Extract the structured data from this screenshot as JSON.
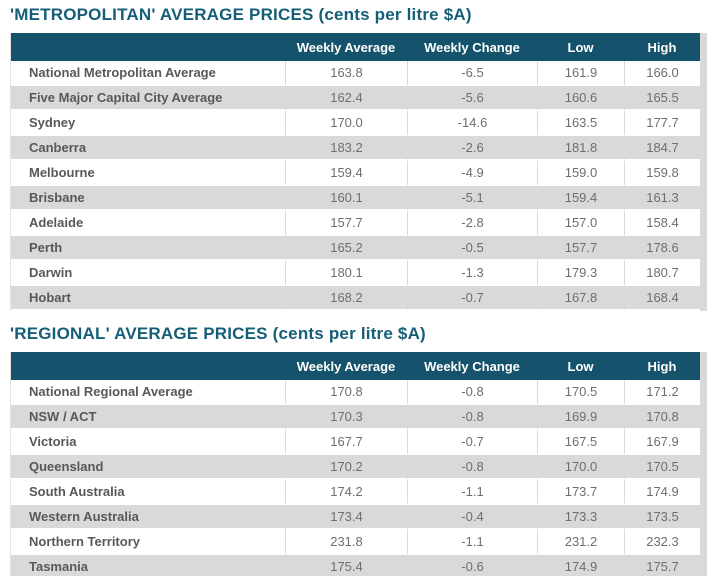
{
  "colors": {
    "header_bg": "#14536B",
    "header_text": "#FFFFFF",
    "title_color": "#155E77",
    "row_alt_bg": "#D9D9D9",
    "label_color": "#58585A",
    "value_color": "#6D6E70"
  },
  "chart_data": [
    {
      "type": "table",
      "title": "'METROPOLITAN' AVERAGE PRICES (cents per litre $A)",
      "columns": [
        "",
        "Weekly Average",
        "Weekly Change",
        "Low",
        "High"
      ],
      "rows": [
        {
          "label": "National Metropolitan Average",
          "values": [
            "163.8",
            "-6.5",
            "161.9",
            "166.0"
          ]
        },
        {
          "label": "Five Major Capital City Average",
          "values": [
            "162.4",
            "-5.6",
            "160.6",
            "165.5"
          ]
        },
        {
          "label": "Sydney",
          "values": [
            "170.0",
            "-14.6",
            "163.5",
            "177.7"
          ]
        },
        {
          "label": "Canberra",
          "values": [
            "183.2",
            "-2.6",
            "181.8",
            "184.7"
          ]
        },
        {
          "label": "Melbourne",
          "values": [
            "159.4",
            "-4.9",
            "159.0",
            "159.8"
          ]
        },
        {
          "label": "Brisbane",
          "values": [
            "160.1",
            "-5.1",
            "159.4",
            "161.3"
          ]
        },
        {
          "label": "Adelaide",
          "values": [
            "157.7",
            "-2.8",
            "157.0",
            "158.4"
          ]
        },
        {
          "label": "Perth",
          "values": [
            "165.2",
            "-0.5",
            "157.7",
            "178.6"
          ]
        },
        {
          "label": "Darwin",
          "values": [
            "180.1",
            "-1.3",
            "179.3",
            "180.7"
          ]
        },
        {
          "label": "Hobart",
          "values": [
            "168.2",
            "-0.7",
            "167.8",
            "168.4"
          ]
        }
      ]
    },
    {
      "type": "table",
      "title": "'REGIONAL' AVERAGE PRICES (cents per litre $A)",
      "columns": [
        "",
        "Weekly Average",
        "Weekly Change",
        "Low",
        "High"
      ],
      "rows": [
        {
          "label": "National Regional Average",
          "values": [
            "170.8",
            "-0.8",
            "170.5",
            "171.2"
          ]
        },
        {
          "label": "NSW / ACT",
          "values": [
            "170.3",
            "-0.8",
            "169.9",
            "170.8"
          ]
        },
        {
          "label": "Victoria",
          "values": [
            "167.7",
            "-0.7",
            "167.5",
            "167.9"
          ]
        },
        {
          "label": "Queensland",
          "values": [
            "170.2",
            "-0.8",
            "170.0",
            "170.5"
          ]
        },
        {
          "label": "South Australia",
          "values": [
            "174.2",
            "-1.1",
            "173.7",
            "174.9"
          ]
        },
        {
          "label": "Western Australia",
          "values": [
            "173.4",
            "-0.4",
            "173.3",
            "173.5"
          ]
        },
        {
          "label": "Northern Territory",
          "values": [
            "231.8",
            "-1.1",
            "231.2",
            "232.3"
          ]
        },
        {
          "label": "Tasmania",
          "values": [
            "175.4",
            "-0.6",
            "174.9",
            "175.7"
          ]
        }
      ]
    }
  ]
}
